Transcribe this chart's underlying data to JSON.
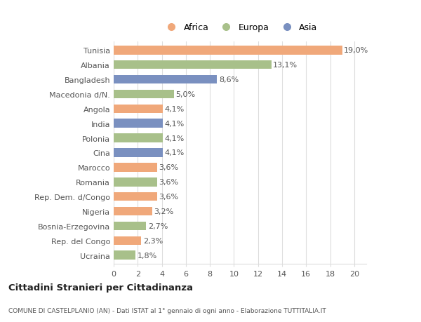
{
  "countries": [
    "Tunisia",
    "Albania",
    "Bangladesh",
    "Macedonia d/N.",
    "Angola",
    "India",
    "Polonia",
    "Cina",
    "Marocco",
    "Romania",
    "Rep. Dem. d/Congo",
    "Nigeria",
    "Bosnia-Erzegovina",
    "Rep. del Congo",
    "Ucraina"
  ],
  "values": [
    19.0,
    13.1,
    8.6,
    5.0,
    4.1,
    4.1,
    4.1,
    4.1,
    3.6,
    3.6,
    3.6,
    3.2,
    2.7,
    2.3,
    1.8
  ],
  "labels": [
    "19,0%",
    "13,1%",
    "8,6%",
    "5,0%",
    "4,1%",
    "4,1%",
    "4,1%",
    "4,1%",
    "3,6%",
    "3,6%",
    "3,6%",
    "3,2%",
    "2,7%",
    "2,3%",
    "1,8%"
  ],
  "continents": [
    "Africa",
    "Europa",
    "Asia",
    "Europa",
    "Africa",
    "Asia",
    "Europa",
    "Asia",
    "Africa",
    "Europa",
    "Africa",
    "Africa",
    "Europa",
    "Africa",
    "Europa"
  ],
  "continent_colors": {
    "Africa": "#F0A87A",
    "Europa": "#A8C08A",
    "Asia": "#7A90C0"
  },
  "legend_order": [
    "Africa",
    "Europa",
    "Asia"
  ],
  "xlim": [
    0,
    21
  ],
  "xticks": [
    0,
    2,
    4,
    6,
    8,
    10,
    12,
    14,
    16,
    18,
    20
  ],
  "title_main": "Cittadini Stranieri per Cittadinanza",
  "title_sub": "COMUNE DI CASTELPLANIO (AN) - Dati ISTAT al 1° gennaio di ogni anno - Elaborazione TUTTITALIA.IT",
  "background_color": "#ffffff",
  "bar_height": 0.6,
  "grid_color": "#dddddd",
  "label_fontsize": 8,
  "ytick_fontsize": 8,
  "xtick_fontsize": 8,
  "legend_fontsize": 9
}
